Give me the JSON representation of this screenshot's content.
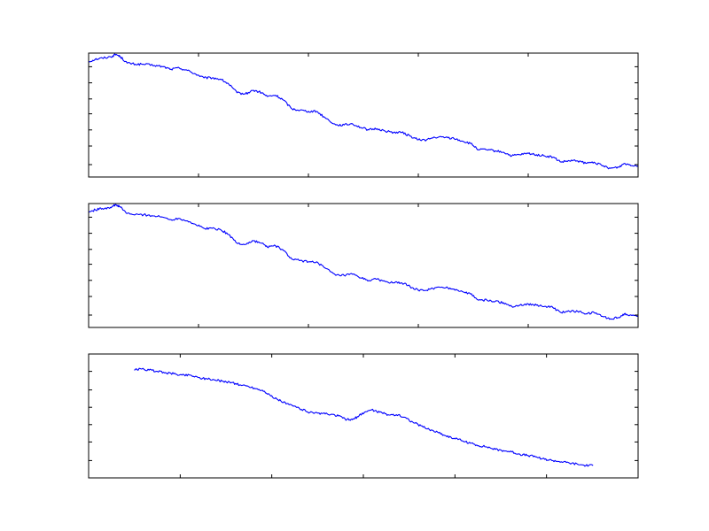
{
  "figure": {
    "background": "#ffffff",
    "line_color": "#0000ff",
    "axes_color": "#000000"
  },
  "chart_data": [
    {
      "type": "line",
      "title": "",
      "xlabel": "",
      "ylabel": "",
      "grid": false,
      "xlim": [
        0,
        1000
      ],
      "ylim": [
        0,
        1
      ],
      "xticks": [
        200,
        400,
        600,
        800
      ],
      "yticks": [
        0.1,
        0.25,
        0.38,
        0.51,
        0.63,
        0.76,
        0.89
      ],
      "series": [
        {
          "points": [
            [
              0,
              0.93
            ],
            [
              12,
              0.95
            ],
            [
              25,
              0.96
            ],
            [
              40,
              0.97
            ],
            [
              50,
              0.99
            ],
            [
              58,
              0.97
            ],
            [
              70,
              0.92
            ],
            [
              85,
              0.91
            ],
            [
              100,
              0.91
            ],
            [
              120,
              0.9
            ],
            [
              135,
              0.89
            ],
            [
              150,
              0.87
            ],
            [
              165,
              0.88
            ],
            [
              180,
              0.86
            ],
            [
              195,
              0.83
            ],
            [
              210,
              0.8
            ],
            [
              225,
              0.8
            ],
            [
              240,
              0.79
            ],
            [
              255,
              0.75
            ],
            [
              270,
              0.68
            ],
            [
              285,
              0.67
            ],
            [
              300,
              0.7
            ],
            [
              315,
              0.68
            ],
            [
              325,
              0.65
            ],
            [
              340,
              0.66
            ],
            [
              355,
              0.62
            ],
            [
              370,
              0.55
            ],
            [
              385,
              0.54
            ],
            [
              400,
              0.53
            ],
            [
              415,
              0.53
            ],
            [
              430,
              0.48
            ],
            [
              450,
              0.42
            ],
            [
              465,
              0.42
            ],
            [
              480,
              0.43
            ],
            [
              495,
              0.4
            ],
            [
              510,
              0.38
            ],
            [
              525,
              0.39
            ],
            [
              540,
              0.37
            ],
            [
              555,
              0.36
            ],
            [
              570,
              0.36
            ],
            [
              585,
              0.33
            ],
            [
              600,
              0.3
            ],
            [
              615,
              0.3
            ],
            [
              630,
              0.32
            ],
            [
              650,
              0.32
            ],
            [
              665,
              0.31
            ],
            [
              680,
              0.29
            ],
            [
              695,
              0.27
            ],
            [
              710,
              0.22
            ],
            [
              725,
              0.22
            ],
            [
              740,
              0.21
            ],
            [
              755,
              0.2
            ],
            [
              770,
              0.17
            ],
            [
              785,
              0.18
            ],
            [
              800,
              0.19
            ],
            [
              815,
              0.18
            ],
            [
              830,
              0.17
            ],
            [
              845,
              0.16
            ],
            [
              860,
              0.12
            ],
            [
              875,
              0.13
            ],
            [
              890,
              0.13
            ],
            [
              905,
              0.11
            ],
            [
              920,
              0.12
            ],
            [
              935,
              0.09
            ],
            [
              950,
              0.07
            ],
            [
              965,
              0.08
            ],
            [
              975,
              0.11
            ],
            [
              985,
              0.1
            ],
            [
              1000,
              0.09
            ]
          ]
        }
      ]
    },
    {
      "type": "line",
      "title": "",
      "xlabel": "",
      "ylabel": "",
      "grid": false,
      "xlim": [
        0,
        1000
      ],
      "ylim": [
        0,
        1
      ],
      "xticks": [
        200,
        400,
        600,
        800
      ],
      "yticks": [
        0.1,
        0.25,
        0.38,
        0.51,
        0.63,
        0.76,
        0.89
      ],
      "series": [
        {
          "points": [
            [
              0,
              0.93
            ],
            [
              12,
              0.95
            ],
            [
              25,
              0.96
            ],
            [
              40,
              0.97
            ],
            [
              50,
              0.99
            ],
            [
              58,
              0.97
            ],
            [
              70,
              0.92
            ],
            [
              85,
              0.91
            ],
            [
              100,
              0.91
            ],
            [
              120,
              0.9
            ],
            [
              135,
              0.89
            ],
            [
              150,
              0.87
            ],
            [
              165,
              0.88
            ],
            [
              180,
              0.86
            ],
            [
              195,
              0.83
            ],
            [
              210,
              0.8
            ],
            [
              225,
              0.8
            ],
            [
              240,
              0.79
            ],
            [
              255,
              0.75
            ],
            [
              270,
              0.68
            ],
            [
              285,
              0.67
            ],
            [
              300,
              0.7
            ],
            [
              315,
              0.68
            ],
            [
              325,
              0.65
            ],
            [
              340,
              0.66
            ],
            [
              355,
              0.62
            ],
            [
              370,
              0.55
            ],
            [
              385,
              0.54
            ],
            [
              400,
              0.53
            ],
            [
              415,
              0.53
            ],
            [
              430,
              0.48
            ],
            [
              450,
              0.42
            ],
            [
              465,
              0.42
            ],
            [
              480,
              0.43
            ],
            [
              495,
              0.4
            ],
            [
              510,
              0.38
            ],
            [
              525,
              0.39
            ],
            [
              540,
              0.37
            ],
            [
              555,
              0.36
            ],
            [
              570,
              0.36
            ],
            [
              585,
              0.33
            ],
            [
              600,
              0.3
            ],
            [
              615,
              0.3
            ],
            [
              630,
              0.32
            ],
            [
              650,
              0.32
            ],
            [
              665,
              0.31
            ],
            [
              680,
              0.29
            ],
            [
              695,
              0.27
            ],
            [
              710,
              0.22
            ],
            [
              725,
              0.22
            ],
            [
              740,
              0.21
            ],
            [
              755,
              0.2
            ],
            [
              770,
              0.17
            ],
            [
              785,
              0.18
            ],
            [
              800,
              0.19
            ],
            [
              815,
              0.18
            ],
            [
              830,
              0.17
            ],
            [
              845,
              0.16
            ],
            [
              860,
              0.12
            ],
            [
              875,
              0.13
            ],
            [
              890,
              0.13
            ],
            [
              905,
              0.11
            ],
            [
              920,
              0.12
            ],
            [
              935,
              0.09
            ],
            [
              950,
              0.07
            ],
            [
              965,
              0.08
            ],
            [
              975,
              0.11
            ],
            [
              985,
              0.1
            ],
            [
              1000,
              0.09
            ]
          ]
        }
      ]
    },
    {
      "type": "line",
      "title": "",
      "xlabel": "",
      "ylabel": "",
      "grid": false,
      "xlim": [
        0,
        1000
      ],
      "ylim": [
        0,
        1
      ],
      "xticks": [
        166.7,
        333.3,
        500,
        666.7,
        833.3
      ],
      "yticks": [
        0.14,
        0.29,
        0.43,
        0.57,
        0.71,
        0.86
      ],
      "series": [
        {
          "points": [
            [
              83,
              0.87
            ],
            [
              95,
              0.88
            ],
            [
              110,
              0.87
            ],
            [
              125,
              0.86
            ],
            [
              140,
              0.85
            ],
            [
              155,
              0.84
            ],
            [
              170,
              0.83
            ],
            [
              185,
              0.83
            ],
            [
              200,
              0.81
            ],
            [
              215,
              0.8
            ],
            [
              230,
              0.79
            ],
            [
              245,
              0.78
            ],
            [
              260,
              0.77
            ],
            [
              275,
              0.75
            ],
            [
              290,
              0.74
            ],
            [
              305,
              0.72
            ],
            [
              320,
              0.7
            ],
            [
              335,
              0.65
            ],
            [
              350,
              0.62
            ],
            [
              365,
              0.59
            ],
            [
              380,
              0.57
            ],
            [
              395,
              0.54
            ],
            [
              410,
              0.52
            ],
            [
              425,
              0.52
            ],
            [
              440,
              0.51
            ],
            [
              455,
              0.5
            ],
            [
              470,
              0.47
            ],
            [
              480,
              0.47
            ],
            [
              492,
              0.5
            ],
            [
              502,
              0.53
            ],
            [
              515,
              0.55
            ],
            [
              530,
              0.53
            ],
            [
              545,
              0.51
            ],
            [
              560,
              0.51
            ],
            [
              575,
              0.49
            ],
            [
              590,
              0.45
            ],
            [
              605,
              0.42
            ],
            [
              620,
              0.39
            ],
            [
              635,
              0.37
            ],
            [
              650,
              0.34
            ],
            [
              665,
              0.32
            ],
            [
              680,
              0.3
            ],
            [
              695,
              0.28
            ],
            [
              710,
              0.26
            ],
            [
              725,
              0.25
            ],
            [
              740,
              0.23
            ],
            [
              755,
              0.22
            ],
            [
              770,
              0.21
            ],
            [
              785,
              0.19
            ],
            [
              800,
              0.18
            ],
            [
              815,
              0.17
            ],
            [
              830,
              0.15
            ],
            [
              845,
              0.14
            ],
            [
              860,
              0.13
            ],
            [
              875,
              0.12
            ],
            [
              890,
              0.11
            ],
            [
              905,
              0.1
            ],
            [
              918,
              0.1
            ]
          ]
        }
      ]
    }
  ]
}
